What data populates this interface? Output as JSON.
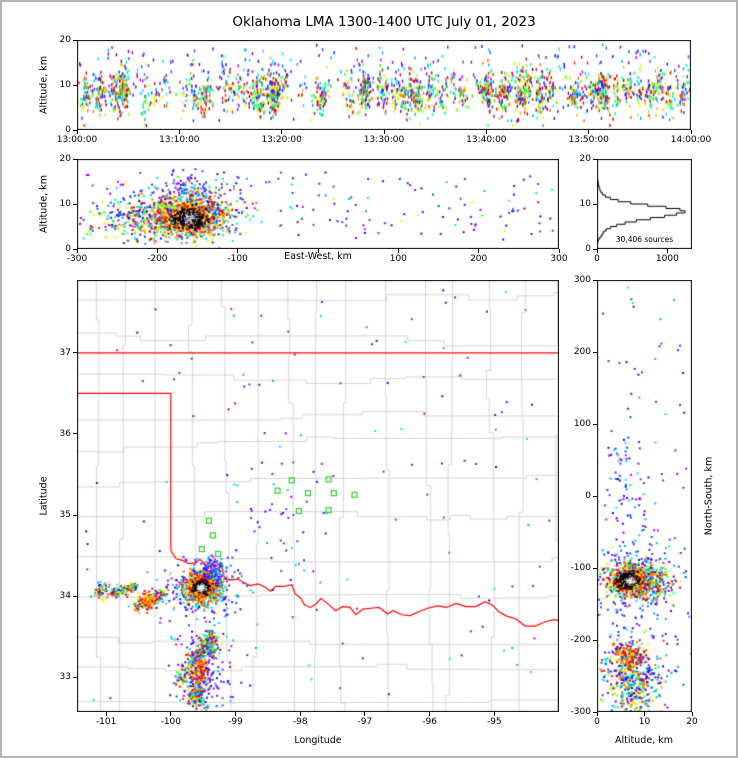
{
  "title": "Oklahoma LMA 1300-1400 UTC July 01, 2023",
  "colors": {
    "background": "#ffffff",
    "figure_border": "#b4b4b4",
    "axis_frame": "#000000",
    "county_line": "#cccccc",
    "state_line": "#ff0000",
    "station": "#33cc33",
    "histogram_line": "#000000"
  },
  "palettes": {
    "rainbow": [
      "#7f00ff",
      "#3300ff",
      "#0040ff",
      "#00a0ff",
      "#00e0ff",
      "#00ffcc",
      "#00ff66",
      "#33ff00",
      "#99ff00",
      "#ddff00",
      "#ffee00",
      "#ffaa00",
      "#ff6600",
      "#ff2200",
      "#ee0000",
      "#aa0000"
    ],
    "cool": [
      "#8800ff",
      "#5500ff",
      "#2200ff",
      "#0055ff",
      "#00aaff",
      "#00ddff",
      "#cc00ff",
      "#4444ff"
    ],
    "hot": [
      "#ff0000",
      "#ff5500",
      "#ff9900",
      "#ffcc00",
      "#ffee00",
      "#cc0000",
      "#ff3300"
    ],
    "black": [
      "#000000",
      "#151515"
    ],
    "white": [
      "#ffffff",
      "#f0f0f0"
    ]
  },
  "chart_data": [
    {
      "id": "time-height",
      "type": "scatter",
      "xlabel": "",
      "ylabel": "Altitude, km",
      "xlim": [
        0,
        3600
      ],
      "ylim": [
        0,
        20
      ],
      "xticks": [
        {
          "v": 0,
          "label": "13:00:00"
        },
        {
          "v": 600,
          "label": "13:10:00"
        },
        {
          "v": 1200,
          "label": "13:20:00"
        },
        {
          "v": 1800,
          "label": "13:30:00"
        },
        {
          "v": 2400,
          "label": "13:40:00"
        },
        {
          "v": 3000,
          "label": "13:50:00"
        },
        {
          "v": 3600,
          "label": "14:00:00"
        }
      ],
      "yticks": [
        {
          "v": 0,
          "label": "0"
        },
        {
          "v": 10,
          "label": "10"
        },
        {
          "v": 20,
          "label": "20"
        }
      ],
      "clusters": [
        {
          "kind": "columns",
          "ncols": 150,
          "xrange": [
            20,
            3580
          ],
          "tsd": 15,
          "nmin": 4,
          "nmax": 34,
          "alt_mean": 8.2,
          "alt_sd": 2.2,
          "clip": [
            1,
            19.5
          ],
          "colors": "rainbow",
          "dash": true
        },
        {
          "kind": "uniform",
          "x": [
            0,
            3600
          ],
          "y": [
            9,
            19
          ],
          "n": 200,
          "colors": "cool",
          "dash": true
        },
        {
          "kind": "uniform",
          "x": [
            0,
            3600
          ],
          "y": [
            2,
            16
          ],
          "n": 150,
          "colors": "rainbow",
          "dash": true
        }
      ]
    },
    {
      "id": "east-west-height",
      "type": "scatter",
      "xlabel": "East-West, km",
      "ylabel": "Altitude, km",
      "xlim": [
        -300,
        300
      ],
      "ylim": [
        0,
        20
      ],
      "xticks": [
        {
          "v": -300,
          "label": "-300"
        },
        {
          "v": -200,
          "label": "-200"
        },
        {
          "v": -100,
          "label": "-100"
        },
        {
          "v": 0,
          "label": ""
        },
        {
          "v": 100,
          "label": "100"
        },
        {
          "v": 200,
          "label": "200"
        },
        {
          "v": 300,
          "label": "300"
        }
      ],
      "yticks": [
        {
          "v": 0,
          "label": "0"
        },
        {
          "v": 10,
          "label": "10"
        },
        {
          "v": 20,
          "label": "20"
        }
      ],
      "clusters": [
        {
          "kind": "gauss",
          "cx": -225,
          "cy": 6.2,
          "sx": 30,
          "sy": 2.2,
          "n": 220,
          "colors": "rainbow"
        },
        {
          "kind": "gauss",
          "cx": -170,
          "cy": 9,
          "sx": 45,
          "sy": 3.2,
          "n": 170,
          "colors": "cool"
        },
        {
          "kind": "gauss",
          "cx": -160,
          "cy": 7.5,
          "sx": 27,
          "sy": 2.6,
          "n": 850,
          "colors": "rainbow"
        },
        {
          "kind": "gauss",
          "cx": -162,
          "cy": 7.0,
          "sx": 16,
          "sy": 1.7,
          "n": 450,
          "colors": "hot"
        },
        {
          "kind": "gauss",
          "cx": -160,
          "cy": 6.8,
          "sx": 9,
          "sy": 1.1,
          "n": 300,
          "colors": "black"
        },
        {
          "kind": "gauss",
          "cx": -160,
          "cy": 6.9,
          "sx": 6,
          "sy": 0.8,
          "n": 100,
          "colors": "white",
          "size": 1
        },
        {
          "kind": "gauss",
          "cx": -160,
          "cy": 14,
          "sx": 18,
          "sy": 1.8,
          "n": 60,
          "colors": "cool"
        },
        {
          "kind": "uniform",
          "x": [
            -295,
            295
          ],
          "y": [
            2,
            17
          ],
          "n": 120,
          "colors": "cool"
        },
        {
          "kind": "uniform",
          "x": [
            -295,
            295
          ],
          "y": [
            3,
            12
          ],
          "n": 40,
          "colors": "rainbow"
        }
      ]
    },
    {
      "id": "altitude-histogram",
      "type": "line",
      "xlabel": "",
      "ylabel": "",
      "annotation": "30,406 sources",
      "xlim": [
        0,
        1350
      ],
      "ylim": [
        0,
        20
      ],
      "xticks": [
        {
          "v": 0,
          "label": "0"
        },
        {
          "v": 1000,
          "label": "1000"
        }
      ],
      "yticks": [
        {
          "v": 0,
          "label": "0"
        },
        {
          "v": 10,
          "label": "10"
        },
        {
          "v": 20,
          "label": "20"
        }
      ],
      "bin_km": 0.5,
      "counts": [
        2,
        4,
        8,
        15,
        30,
        55,
        75,
        95,
        130,
        190,
        280,
        400,
        560,
        760,
        960,
        1130,
        1250,
        1180,
        980,
        720,
        480,
        300,
        190,
        120,
        80,
        55,
        40,
        30,
        22,
        16,
        12,
        9,
        7,
        5,
        4,
        3,
        2,
        2,
        1,
        1
      ]
    },
    {
      "id": "plan-view-map",
      "type": "scatter",
      "xlabel": "Longitude",
      "ylabel": "Latitude",
      "xlim": [
        -101.45,
        -94.0
      ],
      "ylim": [
        32.57,
        37.9
      ],
      "xticks": [
        {
          "v": -101,
          "label": "-101"
        },
        {
          "v": -100,
          "label": "-100"
        },
        {
          "v": -99,
          "label": "-99"
        },
        {
          "v": -98,
          "label": "-98"
        },
        {
          "v": -97,
          "label": "-97"
        },
        {
          "v": -96,
          "label": "-96"
        },
        {
          "v": -95,
          "label": "-95"
        }
      ],
      "yticks": [
        {
          "v": 33,
          "label": "33"
        },
        {
          "v": 34,
          "label": "34"
        },
        {
          "v": 35,
          "label": "35"
        },
        {
          "v": 36,
          "label": "36"
        },
        {
          "v": 37,
          "label": "37"
        }
      ],
      "county_grid": true,
      "state_borders": [
        {
          "name": "kansas-oklahoma",
          "pts": [
            [
              -101.45,
              37.0
            ],
            [
              -94.0,
              37.0
            ]
          ]
        },
        {
          "name": "panhandle-south",
          "pts": [
            [
              -101.45,
              36.5
            ],
            [
              -100.0,
              36.5
            ]
          ]
        },
        {
          "name": "texas-100th-meridian",
          "pts": [
            [
              -100.0,
              36.5
            ],
            [
              -100.0,
              34.56
            ]
          ]
        },
        {
          "name": "red-river",
          "pts": [
            [
              -100.0,
              34.56
            ],
            [
              -99.92,
              34.46
            ],
            [
              -99.82,
              34.44
            ],
            [
              -99.72,
              34.4
            ],
            [
              -99.62,
              34.41
            ],
            [
              -99.55,
              34.45
            ],
            [
              -99.46,
              34.39
            ],
            [
              -99.38,
              34.37
            ],
            [
              -99.33,
              34.43
            ],
            [
              -99.26,
              34.39
            ],
            [
              -99.2,
              34.33
            ],
            [
              -99.17,
              34.22
            ],
            [
              -99.07,
              34.2
            ],
            [
              -98.97,
              34.21
            ],
            [
              -98.88,
              34.17
            ],
            [
              -98.78,
              34.13
            ],
            [
              -98.65,
              34.15
            ],
            [
              -98.54,
              34.11
            ],
            [
              -98.46,
              34.06
            ],
            [
              -98.38,
              34.12
            ],
            [
              -98.25,
              34.12
            ],
            [
              -98.13,
              34.14
            ],
            [
              -98.08,
              34.03
            ],
            [
              -98.0,
              33.98
            ],
            [
              -97.93,
              33.89
            ],
            [
              -97.84,
              33.86
            ],
            [
              -97.76,
              33.9
            ],
            [
              -97.68,
              33.97
            ],
            [
              -97.58,
              33.91
            ],
            [
              -97.45,
              33.82
            ],
            [
              -97.35,
              33.87
            ],
            [
              -97.23,
              33.86
            ],
            [
              -97.14,
              33.77
            ],
            [
              -97.03,
              33.84
            ],
            [
              -96.91,
              33.85
            ],
            [
              -96.78,
              33.86
            ],
            [
              -96.65,
              33.78
            ],
            [
              -96.57,
              33.82
            ],
            [
              -96.43,
              33.77
            ],
            [
              -96.3,
              33.76
            ],
            [
              -96.16,
              33.81
            ],
            [
              -96.03,
              33.85
            ],
            [
              -95.88,
              33.88
            ],
            [
              -95.74,
              33.86
            ],
            [
              -95.59,
              33.91
            ],
            [
              -95.44,
              33.87
            ],
            [
              -95.29,
              33.87
            ],
            [
              -95.14,
              33.93
            ],
            [
              -95.03,
              33.89
            ],
            [
              -94.92,
              33.8
            ],
            [
              -94.8,
              33.75
            ],
            [
              -94.67,
              33.72
            ],
            [
              -94.52,
              33.63
            ],
            [
              -94.37,
              33.63
            ],
            [
              -94.22,
              33.68
            ],
            [
              -94.08,
              33.71
            ],
            [
              -94.0,
              33.7
            ]
          ]
        }
      ],
      "stations": [
        [
          -98.13,
          35.43
        ],
        [
          -97.88,
          35.27
        ],
        [
          -97.56,
          35.44
        ],
        [
          -97.48,
          35.27
        ],
        [
          -97.16,
          35.25
        ],
        [
          -97.56,
          35.06
        ],
        [
          -98.02,
          35.05
        ],
        [
          -98.35,
          35.3
        ],
        [
          -99.41,
          34.93
        ],
        [
          -99.35,
          34.75
        ],
        [
          -99.52,
          34.58
        ],
        [
          -99.27,
          34.52
        ]
      ],
      "clusters": [
        {
          "kind": "gauss",
          "cx": -99.5,
          "cy": 34.12,
          "sx": 0.32,
          "sy": 0.2,
          "n": 220,
          "colors": "cool"
        },
        {
          "kind": "gauss",
          "cx": -99.52,
          "cy": 34.12,
          "sx": 0.15,
          "sy": 0.1,
          "n": 800,
          "colors": "rainbow"
        },
        {
          "kind": "gauss",
          "cx": -99.53,
          "cy": 34.11,
          "sx": 0.09,
          "sy": 0.06,
          "n": 500,
          "colors": "hot"
        },
        {
          "kind": "gauss",
          "cx": -99.53,
          "cy": 34.11,
          "sx": 0.05,
          "sy": 0.035,
          "n": 320,
          "colors": "black"
        },
        {
          "kind": "gauss",
          "cx": -99.53,
          "cy": 34.11,
          "sx": 0.03,
          "sy": 0.022,
          "n": 110,
          "colors": "white",
          "size": 1
        },
        {
          "kind": "gauss",
          "cx": -99.33,
          "cy": 34.32,
          "sx": 0.09,
          "sy": 0.07,
          "n": 90,
          "colors": "cool"
        },
        {
          "kind": "streak",
          "x1": -100.92,
          "y1": 34.02,
          "x2": -100.55,
          "y2": 34.12,
          "sd": 0.03,
          "n": 120,
          "colors": "rainbow"
        },
        {
          "kind": "streak",
          "x1": -100.55,
          "y1": 33.86,
          "x2": -100.12,
          "y2": 34.02,
          "sd": 0.03,
          "n": 140,
          "colors": "rainbow"
        },
        {
          "kind": "gauss",
          "cx": -100.35,
          "cy": 33.95,
          "sx": 0.07,
          "sy": 0.05,
          "n": 90,
          "colors": "hot"
        },
        {
          "kind": "gauss",
          "cx": -101.08,
          "cy": 34.06,
          "sx": 0.06,
          "sy": 0.05,
          "n": 50,
          "colors": "rainbow"
        },
        {
          "kind": "streak",
          "x1": -99.88,
          "y1": 32.95,
          "x2": -99.35,
          "y2": 33.52,
          "sd": 0.05,
          "n": 230,
          "colors": "rainbow"
        },
        {
          "kind": "gauss",
          "cx": -99.42,
          "cy": 33.38,
          "sx": 0.07,
          "sy": 0.07,
          "n": 160,
          "colors": "rainbow"
        },
        {
          "kind": "gauss",
          "cx": -99.55,
          "cy": 33.1,
          "sx": 0.06,
          "sy": 0.08,
          "n": 180,
          "colors": "hot"
        },
        {
          "kind": "gauss",
          "cx": -99.6,
          "cy": 32.8,
          "sx": 0.08,
          "sy": 0.1,
          "n": 160,
          "colors": "rainbow"
        },
        {
          "kind": "gauss",
          "cx": -99.5,
          "cy": 33.15,
          "sx": 0.22,
          "sy": 0.3,
          "n": 170,
          "colors": "cool"
        },
        {
          "kind": "gauss",
          "cx": -98.3,
          "cy": 34.9,
          "sx": 0.5,
          "sy": 0.4,
          "n": 40,
          "colors": "cool"
        },
        {
          "kind": "uniform",
          "x": [
            -101.4,
            -94.1
          ],
          "y": [
            32.6,
            37.8
          ],
          "n": 130,
          "colors": "cool"
        }
      ]
    },
    {
      "id": "north-south-height",
      "type": "scatter",
      "xlabel": "Altitude, km",
      "ylabel": "North-South, km",
      "xlim": [
        0,
        20
      ],
      "ylim": [
        -300,
        300
      ],
      "xticks": [
        {
          "v": 0,
          "label": "0"
        },
        {
          "v": 10,
          "label": "10"
        },
        {
          "v": 20,
          "label": "20"
        }
      ],
      "yticks": [
        {
          "v": 300,
          "label": "300"
        },
        {
          "v": 200,
          "label": "200"
        },
        {
          "v": 100,
          "label": "100"
        },
        {
          "v": 0,
          "label": "0"
        },
        {
          "v": -100,
          "label": "-100"
        },
        {
          "v": -200,
          "label": "-200"
        },
        {
          "v": -300,
          "label": "-300"
        }
      ],
      "clusters": [
        {
          "kind": "gauss",
          "cx": 8,
          "cy": -115,
          "sx": 4,
          "sy": 35,
          "n": 170,
          "colors": "cool"
        },
        {
          "kind": "gauss",
          "cx": 7.5,
          "cy": -118,
          "sx": 2.8,
          "sy": 13,
          "n": 700,
          "colors": "rainbow"
        },
        {
          "kind": "gauss",
          "cx": 7,
          "cy": -118,
          "sx": 1.8,
          "sy": 8,
          "n": 400,
          "colors": "hot"
        },
        {
          "kind": "gauss",
          "cx": 6.8,
          "cy": -117,
          "sx": 1.1,
          "sy": 5,
          "n": 280,
          "colors": "black"
        },
        {
          "kind": "gauss",
          "cx": 6.9,
          "cy": -117,
          "sx": 0.7,
          "sy": 3,
          "n": 90,
          "colors": "white",
          "size": 1
        },
        {
          "kind": "gauss",
          "cx": 12.5,
          "cy": -122,
          "sx": 2.5,
          "sy": 12,
          "n": 130,
          "colors": "rainbow"
        },
        {
          "kind": "gauss",
          "cx": 7,
          "cy": -238,
          "sx": 2.6,
          "sy": 22,
          "n": 260,
          "colors": "rainbow"
        },
        {
          "kind": "gauss",
          "cx": 7,
          "cy": -222,
          "sx": 1.6,
          "sy": 9,
          "n": 120,
          "colors": "hot"
        },
        {
          "kind": "gauss",
          "cx": 8,
          "cy": -272,
          "sx": 2.6,
          "sy": 18,
          "n": 190,
          "colors": "rainbow"
        },
        {
          "kind": "gauss",
          "cx": 9,
          "cy": -255,
          "sx": 4,
          "sy": 30,
          "n": 110,
          "colors": "cool"
        },
        {
          "kind": "gauss",
          "cx": 6,
          "cy": 20,
          "sx": 3,
          "sy": 40,
          "n": 60,
          "colors": "cool"
        },
        {
          "kind": "uniform",
          "x": [
            1,
            19
          ],
          "y": [
            -295,
            295
          ],
          "n": 80,
          "colors": "cool"
        }
      ]
    }
  ]
}
